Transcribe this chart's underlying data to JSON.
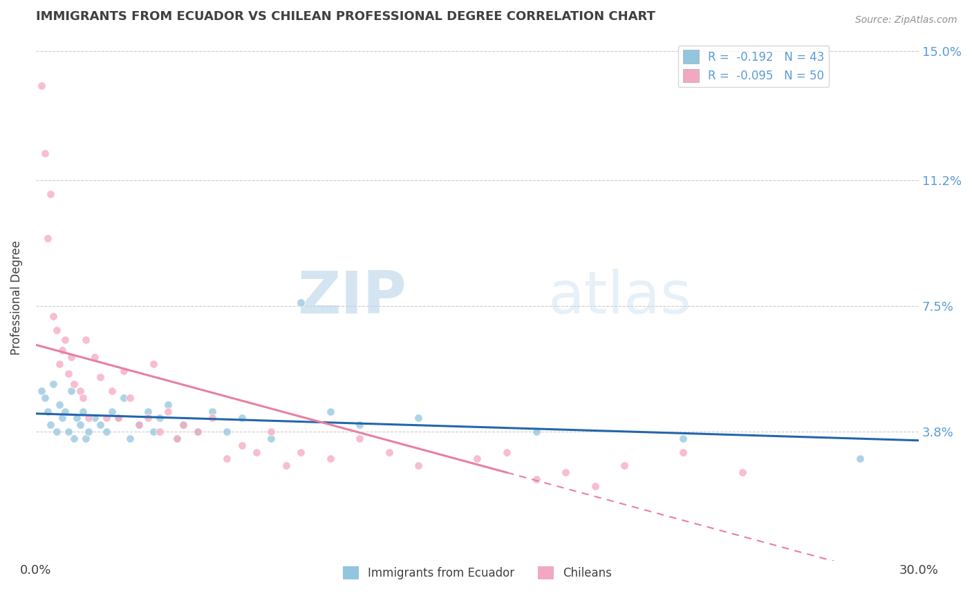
{
  "title": "IMMIGRANTS FROM ECUADOR VS CHILEAN PROFESSIONAL DEGREE CORRELATION CHART",
  "source_text": "Source: ZipAtlas.com",
  "ylabel": "Professional Degree",
  "xmin": 0.0,
  "xmax": 0.3,
  "ymin": 0.0,
  "ymax": 0.155,
  "yticks": [
    0.0,
    0.038,
    0.075,
    0.112,
    0.15
  ],
  "ytick_labels": [
    "",
    "3.8%",
    "7.5%",
    "11.2%",
    "15.0%"
  ],
  "xticks": [
    0.0,
    0.075,
    0.15,
    0.225,
    0.3
  ],
  "xtick_labels": [
    "0.0%",
    "",
    "",
    "",
    "30.0%"
  ],
  "legend_entry1_r": "-0.192",
  "legend_entry1_n": "43",
  "legend_entry2_r": "-0.095",
  "legend_entry2_n": "50",
  "ecuador_color": "#92c5de",
  "chilean_color": "#f4a8c0",
  "ecuador_line_color": "#2166ac",
  "chilean_line_color": "#e87fa0",
  "ecuador_scatter": [
    [
      0.002,
      0.05
    ],
    [
      0.003,
      0.048
    ],
    [
      0.004,
      0.044
    ],
    [
      0.005,
      0.04
    ],
    [
      0.006,
      0.052
    ],
    [
      0.007,
      0.038
    ],
    [
      0.008,
      0.046
    ],
    [
      0.009,
      0.042
    ],
    [
      0.01,
      0.044
    ],
    [
      0.011,
      0.038
    ],
    [
      0.012,
      0.05
    ],
    [
      0.013,
      0.036
    ],
    [
      0.014,
      0.042
    ],
    [
      0.015,
      0.04
    ],
    [
      0.016,
      0.044
    ],
    [
      0.017,
      0.036
    ],
    [
      0.018,
      0.038
    ],
    [
      0.02,
      0.042
    ],
    [
      0.022,
      0.04
    ],
    [
      0.024,
      0.038
    ],
    [
      0.026,
      0.044
    ],
    [
      0.028,
      0.042
    ],
    [
      0.03,
      0.048
    ],
    [
      0.032,
      0.036
    ],
    [
      0.035,
      0.04
    ],
    [
      0.038,
      0.044
    ],
    [
      0.04,
      0.038
    ],
    [
      0.042,
      0.042
    ],
    [
      0.045,
      0.046
    ],
    [
      0.048,
      0.036
    ],
    [
      0.05,
      0.04
    ],
    [
      0.055,
      0.038
    ],
    [
      0.06,
      0.044
    ],
    [
      0.065,
      0.038
    ],
    [
      0.07,
      0.042
    ],
    [
      0.08,
      0.036
    ],
    [
      0.09,
      0.076
    ],
    [
      0.1,
      0.044
    ],
    [
      0.11,
      0.04
    ],
    [
      0.13,
      0.042
    ],
    [
      0.17,
      0.038
    ],
    [
      0.22,
      0.036
    ],
    [
      0.28,
      0.03
    ]
  ],
  "chilean_scatter": [
    [
      0.002,
      0.14
    ],
    [
      0.003,
      0.12
    ],
    [
      0.004,
      0.095
    ],
    [
      0.005,
      0.108
    ],
    [
      0.006,
      0.072
    ],
    [
      0.007,
      0.068
    ],
    [
      0.008,
      0.058
    ],
    [
      0.009,
      0.062
    ],
    [
      0.01,
      0.065
    ],
    [
      0.011,
      0.055
    ],
    [
      0.012,
      0.06
    ],
    [
      0.013,
      0.052
    ],
    [
      0.015,
      0.05
    ],
    [
      0.016,
      0.048
    ],
    [
      0.017,
      0.065
    ],
    [
      0.018,
      0.042
    ],
    [
      0.02,
      0.06
    ],
    [
      0.022,
      0.054
    ],
    [
      0.024,
      0.042
    ],
    [
      0.026,
      0.05
    ],
    [
      0.028,
      0.042
    ],
    [
      0.03,
      0.056
    ],
    [
      0.032,
      0.048
    ],
    [
      0.035,
      0.04
    ],
    [
      0.038,
      0.042
    ],
    [
      0.04,
      0.058
    ],
    [
      0.042,
      0.038
    ],
    [
      0.045,
      0.044
    ],
    [
      0.048,
      0.036
    ],
    [
      0.05,
      0.04
    ],
    [
      0.055,
      0.038
    ],
    [
      0.06,
      0.042
    ],
    [
      0.065,
      0.03
    ],
    [
      0.07,
      0.034
    ],
    [
      0.075,
      0.032
    ],
    [
      0.08,
      0.038
    ],
    [
      0.085,
      0.028
    ],
    [
      0.09,
      0.032
    ],
    [
      0.1,
      0.03
    ],
    [
      0.11,
      0.036
    ],
    [
      0.12,
      0.032
    ],
    [
      0.13,
      0.028
    ],
    [
      0.15,
      0.03
    ],
    [
      0.16,
      0.032
    ],
    [
      0.17,
      0.024
    ],
    [
      0.18,
      0.026
    ],
    [
      0.19,
      0.022
    ],
    [
      0.2,
      0.028
    ],
    [
      0.22,
      0.032
    ],
    [
      0.24,
      0.026
    ]
  ],
  "watermark_zip": "ZIP",
  "watermark_atlas": "atlas",
  "background_color": "#ffffff",
  "grid_color": "#cccccc",
  "axis_label_color": "#5b9bd5",
  "title_color": "#404040"
}
